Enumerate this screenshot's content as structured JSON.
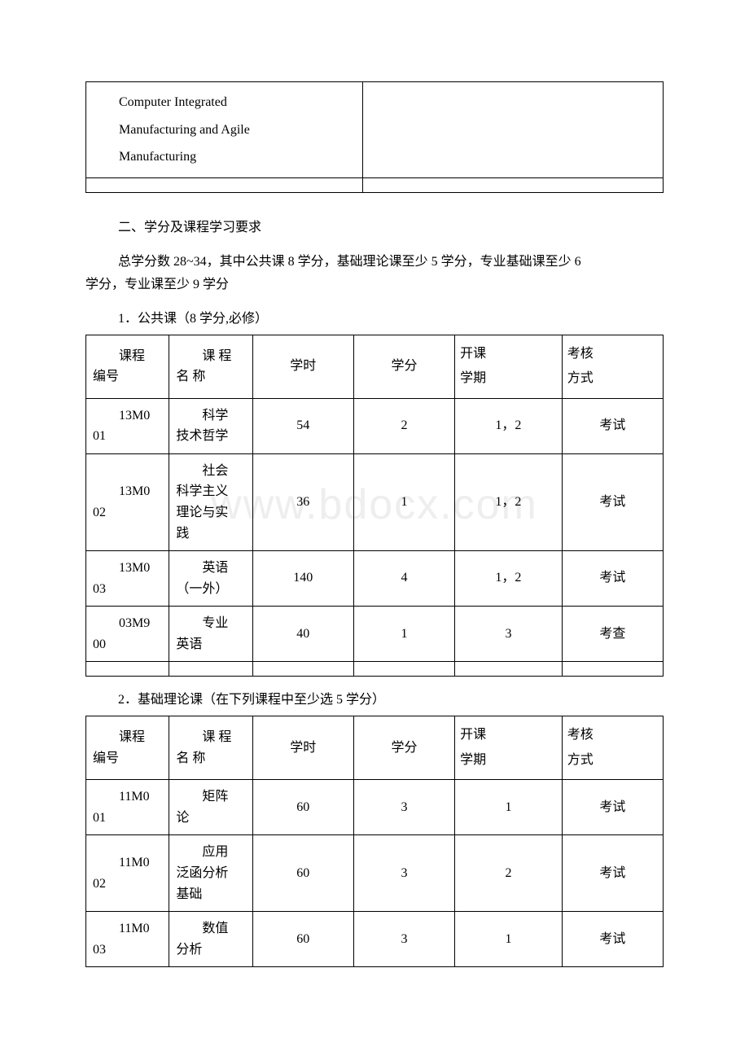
{
  "top_table": {
    "row1_col1": "Computer Integrated\nManufacturing and Agile\nManufacturing",
    "row1_col2": ""
  },
  "section2_heading": "二、学分及课程学习要求",
  "credits_summary_line1": "总学分数 28~34，其中公共课 8 学分，基础理论课至少 5 学分，专业基础课至少 6",
  "credits_summary_line2": "学分，专业课至少 9 学分",
  "sub1_heading": "1．公共课（8 学分,必修）",
  "sub2_heading": "2．基础理论课（在下列课程中至少选 5 学分）",
  "headers": {
    "id_line1": "课程",
    "id_line2": "编号",
    "name_line1": "课 程",
    "name_line2": "名 称",
    "hours": "学时",
    "credits": "学分",
    "semester_line1": "开课",
    "semester_line2": "学期",
    "assess_line1": "考核",
    "assess_line2": "方式"
  },
  "table1": {
    "rows": [
      {
        "id_l1": "13M0",
        "id_l2": "01",
        "name_l1": "科学",
        "name_l2": "技术哲学",
        "hours": "54",
        "credits": "2",
        "semester": "1，2",
        "assess": "考试"
      },
      {
        "id_l1": "13M0",
        "id_l2": "02",
        "name_l1": "社会",
        "name_l2": "科学主义\n理论与实\n践",
        "hours": "36",
        "credits": "1",
        "semester": "1，2",
        "assess": "考试"
      },
      {
        "id_l1": "13M0",
        "id_l2": "03",
        "name_l1": "英语",
        "name_l2": "（一外）",
        "hours": "140",
        "credits": "4",
        "semester": "1，2",
        "assess": "考试"
      },
      {
        "id_l1": "03M9",
        "id_l2": "00",
        "name_l1": "专业",
        "name_l2": "英语",
        "hours": "40",
        "credits": "1",
        "semester": "3",
        "assess": "考查"
      }
    ]
  },
  "table2": {
    "rows": [
      {
        "id_l1": "11M0",
        "id_l2": "01",
        "name_l1": "矩阵",
        "name_l2": "论",
        "hours": "60",
        "credits": "3",
        "semester": "1",
        "assess": "考试"
      },
      {
        "id_l1": "11M0",
        "id_l2": "02",
        "name_l1": "应用",
        "name_l2": "泛函分析\n基础",
        "hours": "60",
        "credits": "3",
        "semester": "2",
        "assess": "考试"
      },
      {
        "id_l1": "11M0",
        "id_l2": "03",
        "name_l1": "数值",
        "name_l2": "分析",
        "hours": "60",
        "credits": "3",
        "semester": "1",
        "assess": "考试"
      }
    ]
  },
  "watermark": "www.bdocx.com"
}
